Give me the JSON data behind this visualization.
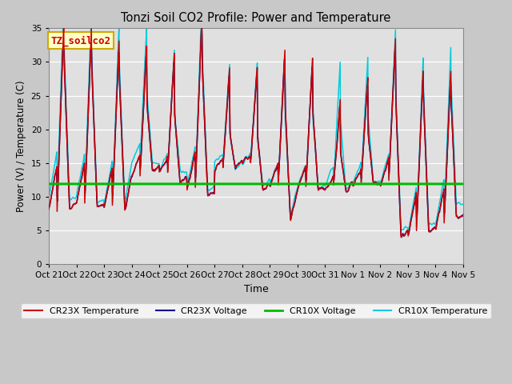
{
  "title": "Tonzi Soil CO2 Profile: Power and Temperature",
  "xlabel": "Time",
  "ylabel": "Power (V) / Temperature (C)",
  "ylim": [
    0,
    35
  ],
  "yticks": [
    0,
    5,
    10,
    15,
    20,
    25,
    30,
    35
  ],
  "fig_bg_color": "#c8c8c8",
  "plot_bg_color": "#e0e0e0",
  "cr23x_temp_color": "#cc0000",
  "cr23x_volt_color": "#000090",
  "cr10x_volt_color": "#00bb00",
  "cr10x_temp_color": "#00ccdd",
  "cr10x_volt_value": 11.9,
  "annotation_text": "TZ_soilco2",
  "annotation_bg": "#ffffcc",
  "annotation_border": "#ccaa00",
  "x_tick_labels": [
    "Oct 21",
    "Oct 22",
    "Oct 23",
    "Oct 24",
    "Oct 25",
    "Oct 26",
    "Oct 27",
    "Oct 28",
    "Oct 29",
    "Oct 30",
    "Oct 31",
    "Nov 1",
    "Nov 2",
    "Nov 3",
    "Nov 4",
    "Nov 5"
  ],
  "legend": [
    {
      "label": "CR23X Temperature",
      "color": "#cc0000",
      "lw": 1.5
    },
    {
      "label": "CR23X Voltage",
      "color": "#000090",
      "lw": 1.5
    },
    {
      "label": "CR10X Voltage",
      "color": "#00bb00",
      "lw": 2.0
    },
    {
      "label": "CR10X Temperature",
      "color": "#00ccdd",
      "lw": 1.5
    }
  ]
}
